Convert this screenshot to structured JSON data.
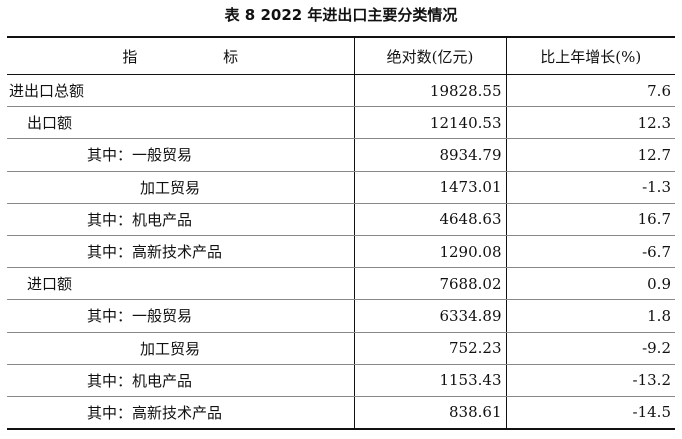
{
  "title": "表 8   2022 年进出口主要分类情况",
  "headers": {
    "indicator": "指                  标",
    "value": "绝对数(亿元)",
    "growth": "比上年增长(%)"
  },
  "rows": [
    {
      "name": "进出口总额",
      "value": "19828.55",
      "growth": "7.6",
      "level": 0
    },
    {
      "name": "出口额",
      "value": "12140.53",
      "growth": "12.3",
      "level": 1
    },
    {
      "name": "其中：一般贸易",
      "value": "8934.79",
      "growth": "12.7",
      "level": 2
    },
    {
      "name": "加工贸易",
      "value": "1473.01",
      "growth": "-1.3",
      "level": 3
    },
    {
      "name": "其中：机电产品",
      "value": "4648.63",
      "growth": "16.7",
      "level": 2
    },
    {
      "name": "其中：高新技术产品",
      "value": "1290.08",
      "growth": "-6.7",
      "level": 2
    },
    {
      "name": "进口额",
      "value": "7688.02",
      "growth": "0.9",
      "level": 1
    },
    {
      "name": "其中：一般贸易",
      "value": "6334.89",
      "growth": "1.8",
      "level": 2
    },
    {
      "name": "加工贸易",
      "value": "752.23",
      "growth": "-9.2",
      "level": 3
    },
    {
      "name": "其中：机电产品",
      "value": "1153.43",
      "growth": "-13.2",
      "level": 2
    },
    {
      "name": "其中：高新技术产品",
      "value": "838.61",
      "growth": "-14.5",
      "level": 2
    }
  ]
}
